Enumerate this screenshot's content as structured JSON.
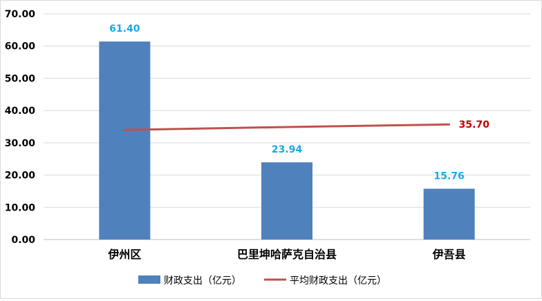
{
  "chart_data": {
    "type": "bar",
    "categories": [
      "伊州区",
      "巴里坤哈萨克自治县",
      "伊吾县"
    ],
    "series": [
      {
        "name": "财政支出（亿元）",
        "type": "bar",
        "values": [
          61.4,
          23.94,
          15.76
        ],
        "color": "#4f81bd",
        "label_color": "#17a9e6"
      },
      {
        "name": "平均财政支出（亿元）",
        "type": "line",
        "values": [
          34.0,
          34.9,
          35.7
        ],
        "color": "#c0504d",
        "label_color": "#c00000",
        "labeled_points": [
          "35.70"
        ]
      }
    ],
    "bar_labels": [
      "61.40",
      "23.94",
      "15.76"
    ],
    "y_ticks": [
      "0.00",
      "10.00",
      "20.00",
      "30.00",
      "40.00",
      "50.00",
      "60.00",
      "70.00"
    ],
    "ylim": [
      0,
      70
    ],
    "grid": true,
    "legend_position": "bottom"
  }
}
